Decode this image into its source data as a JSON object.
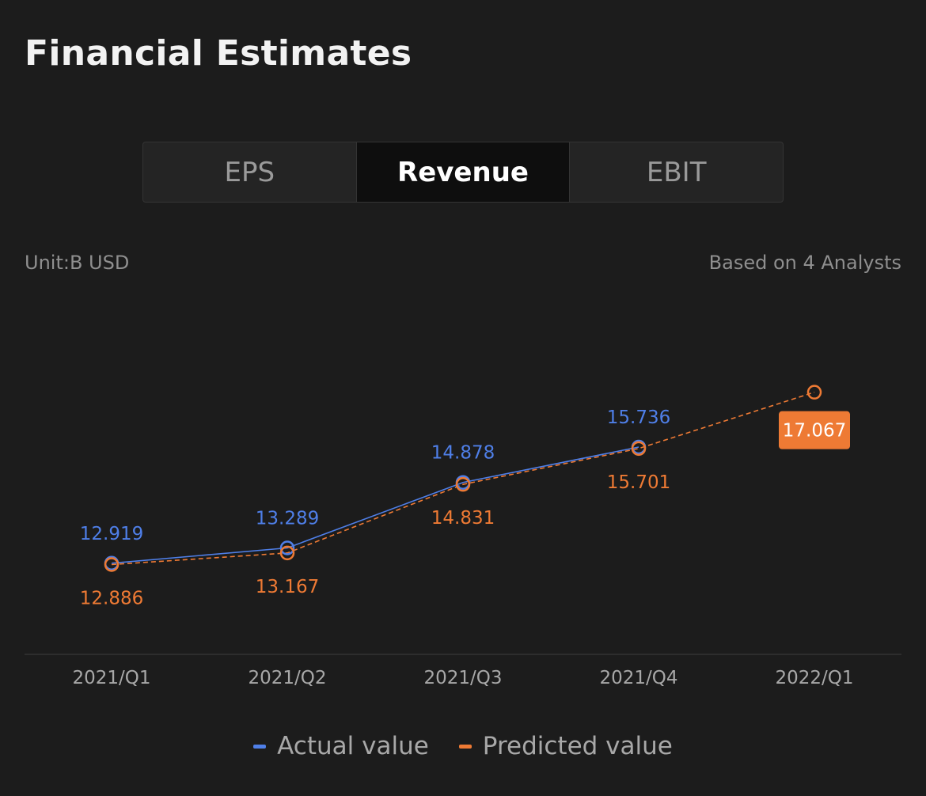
{
  "title": "Financial Estimates",
  "tabs": [
    {
      "label": "EPS",
      "active": false
    },
    {
      "label": "Revenue",
      "active": true
    },
    {
      "label": "EBIT",
      "active": false
    }
  ],
  "unit_label": "Unit:B USD",
  "analysts_label": "Based on 4 Analysts",
  "colors": {
    "actual": "#4f7fe8",
    "predicted": "#ee7a34",
    "highlight_bg": "#ee7a34"
  },
  "chart_data": {
    "type": "line",
    "categories": [
      "2021/Q1",
      "2021/Q2",
      "2021/Q3",
      "2021/Q4",
      "2022/Q1"
    ],
    "series": [
      {
        "name": "Actual value",
        "values": [
          12.919,
          13.289,
          14.878,
          15.736,
          null
        ]
      },
      {
        "name": "Predicted value",
        "values": [
          12.886,
          13.167,
          14.831,
          15.701,
          17.067
        ]
      }
    ],
    "data_labels": {
      "actual": [
        "12.919",
        "13.289",
        "14.878",
        "15.736",
        null
      ],
      "predicted": [
        "12.886",
        "13.167",
        "14.831",
        "15.701",
        "17.067"
      ]
    },
    "highlighted_point": {
      "series": "Predicted value",
      "index": 4
    },
    "ylim": [
      11.12,
      18.5
    ],
    "grid": false,
    "legend_position": "bottom-center"
  }
}
